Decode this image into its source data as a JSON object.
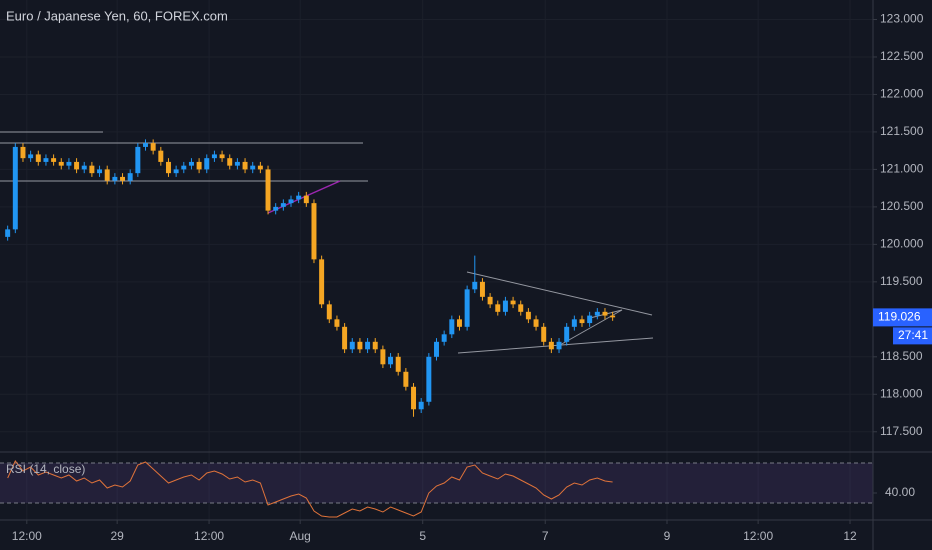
{
  "chart_data": {
    "type": "candlestick",
    "title": "Euro / Japanese Yen, 60, FOREX.com",
    "up_color": "#2196f3",
    "down_color": "#f5a623",
    "grid": true,
    "xlim": [
      -1,
      113
    ],
    "xticks": [
      {
        "value": 2.5,
        "label": "12:00"
      },
      {
        "value": 14.3,
        "label": "29"
      },
      {
        "value": 26.3,
        "label": "12:00"
      },
      {
        "value": 38.2,
        "label": "Aug"
      },
      {
        "value": 54.2,
        "label": "5"
      },
      {
        "value": 70.2,
        "label": "7"
      },
      {
        "value": 86.1,
        "label": "9"
      },
      {
        "value": 98,
        "label": "12:00"
      },
      {
        "value": 110,
        "label": "12"
      }
    ],
    "ylim": [
      117.23,
      123.26
    ],
    "yticks": [
      {
        "value": 123,
        "label": "123.000"
      },
      {
        "value": 122.5,
        "label": "122.500"
      },
      {
        "value": 122,
        "label": "122.000"
      },
      {
        "value": 121.5,
        "label": "121.500"
      },
      {
        "value": 121,
        "label": "121.000"
      },
      {
        "value": 120.5,
        "label": "120.500"
      },
      {
        "value": 120,
        "label": "120.000"
      },
      {
        "value": 119.5,
        "label": "119.500"
      },
      {
        "value": 118.5,
        "label": "118.500"
      },
      {
        "value": 118,
        "label": "118.000"
      },
      {
        "value": 117.5,
        "label": "117.500"
      }
    ],
    "last_price": 119.026,
    "countdown": "27:41",
    "open": [
      120.1,
      120.2,
      121.3,
      121.15,
      121.2,
      121.1,
      121.15,
      121.1,
      121.05,
      121.1,
      121.0,
      121.05,
      120.95,
      121.0,
      120.85,
      120.9,
      120.85,
      120.95,
      121.3,
      121.35,
      121.25,
      121.1,
      120.95,
      121.0,
      121.05,
      121.1,
      121.0,
      121.15,
      121.2,
      121.15,
      121.05,
      121.1,
      121.0,
      121.05,
      121.0,
      120.45,
      120.5,
      120.55,
      120.6,
      120.65,
      120.55,
      119.8,
      119.2,
      119.0,
      118.9,
      118.6,
      118.7,
      118.6,
      118.7,
      118.6,
      118.4,
      118.5,
      118.3,
      118.1,
      117.8,
      117.9,
      118.5,
      118.7,
      118.8,
      119.0,
      118.9,
      119.4,
      119.5,
      119.3,
      119.2,
      119.1,
      119.25,
      119.2,
      119.1,
      119.0,
      118.9,
      118.7,
      118.6,
      118.7,
      118.9,
      119.0,
      118.95,
      119.05,
      119.1,
      119.05
    ],
    "high": [
      120.25,
      121.35,
      121.35,
      121.25,
      121.25,
      121.2,
      121.2,
      121.15,
      121.15,
      121.15,
      121.1,
      121.1,
      121.05,
      121.05,
      120.95,
      120.95,
      121.0,
      121.35,
      121.4,
      121.4,
      121.3,
      121.15,
      121.05,
      121.1,
      121.15,
      121.15,
      121.2,
      121.25,
      121.25,
      121.2,
      121.15,
      121.15,
      121.1,
      121.1,
      121.05,
      120.55,
      120.6,
      120.65,
      120.7,
      120.7,
      120.6,
      119.85,
      119.25,
      119.05,
      118.95,
      118.75,
      118.75,
      118.75,
      118.75,
      118.65,
      118.55,
      118.55,
      118.35,
      118.15,
      117.95,
      118.55,
      118.75,
      118.85,
      119.05,
      119.05,
      119.45,
      119.85,
      119.55,
      119.35,
      119.25,
      119.3,
      119.3,
      119.25,
      119.15,
      119.05,
      118.95,
      118.75,
      118.75,
      118.95,
      119.05,
      119.05,
      119.1,
      119.15,
      119.15,
      119.1
    ],
    "low": [
      120.05,
      120.15,
      121.1,
      121.1,
      121.05,
      121.05,
      121.05,
      121.0,
      121.0,
      120.95,
      120.95,
      120.9,
      120.9,
      120.8,
      120.8,
      120.8,
      120.8,
      120.9,
      121.25,
      121.2,
      121.05,
      120.9,
      120.9,
      120.95,
      121.0,
      120.95,
      120.95,
      121.1,
      121.1,
      121.0,
      121.0,
      120.95,
      120.95,
      120.95,
      120.4,
      120.4,
      120.45,
      120.5,
      120.55,
      120.5,
      119.75,
      119.15,
      118.95,
      118.85,
      118.55,
      118.55,
      118.55,
      118.55,
      118.55,
      118.35,
      118.35,
      118.25,
      118.05,
      117.7,
      117.75,
      117.85,
      118.45,
      118.65,
      118.75,
      118.85,
      118.85,
      119.35,
      119.25,
      119.15,
      119.05,
      119.05,
      119.15,
      119.05,
      118.95,
      118.85,
      118.65,
      118.55,
      118.55,
      118.65,
      118.85,
      118.9,
      118.9,
      119.0,
      119.0,
      118.98
    ],
    "close": [
      120.2,
      121.3,
      121.15,
      121.2,
      121.1,
      121.15,
      121.1,
      121.05,
      121.1,
      121.0,
      121.05,
      120.95,
      121.0,
      120.85,
      120.9,
      120.85,
      120.95,
      121.3,
      121.35,
      121.25,
      121.1,
      120.95,
      121.0,
      121.05,
      121.1,
      121.0,
      121.15,
      121.2,
      121.15,
      121.05,
      121.1,
      121.0,
      121.05,
      121.0,
      120.45,
      120.5,
      120.55,
      120.6,
      120.65,
      120.55,
      119.8,
      119.2,
      119.0,
      118.9,
      118.6,
      118.7,
      118.6,
      118.7,
      118.6,
      118.4,
      118.5,
      118.3,
      118.1,
      117.8,
      117.9,
      118.5,
      118.7,
      118.8,
      119.0,
      118.9,
      119.4,
      119.5,
      119.3,
      119.2,
      119.1,
      119.25,
      119.2,
      119.1,
      119.0,
      118.9,
      118.7,
      118.6,
      118.7,
      118.9,
      119.0,
      118.95,
      119.05,
      119.1,
      119.05,
      119.026
    ],
    "indicator": {
      "name": "RSI (14, close)",
      "color": "#e0733a",
      "ylim": [
        13,
        81
      ],
      "yticks": [
        {
          "value": 40,
          "label": "40.00"
        }
      ],
      "bands": [
        30,
        70
      ],
      "values": [
        55,
        72,
        62,
        66,
        58,
        61,
        58,
        55,
        58,
        52,
        55,
        50,
        53,
        45,
        48,
        46,
        52,
        68,
        71,
        64,
        57,
        50,
        53,
        56,
        58,
        53,
        60,
        62,
        59,
        54,
        56,
        51,
        53,
        50,
        28,
        31,
        34,
        37,
        39,
        35,
        22,
        17,
        16,
        16,
        20,
        24,
        22,
        26,
        24,
        21,
        26,
        23,
        20,
        17,
        21,
        40,
        47,
        50,
        56,
        53,
        66,
        68,
        60,
        57,
        54,
        59,
        57,
        53,
        49,
        45,
        38,
        34,
        38,
        46,
        50,
        48,
        53,
        55,
        52,
        51
      ]
    }
  }
}
